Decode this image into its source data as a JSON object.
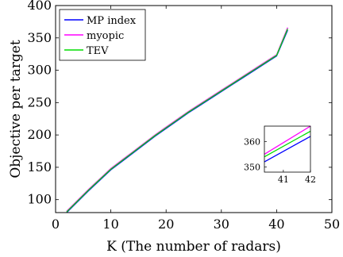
{
  "chart_data": [
    {
      "type": "line",
      "title": "",
      "xlabel": "K (The number of radars)",
      "ylabel": "Objective per target",
      "xlim": [
        0,
        50
      ],
      "ylim": [
        80,
        400
      ],
      "xticks": [
        0,
        10,
        20,
        30,
        40,
        50
      ],
      "yticks": [
        100,
        150,
        200,
        250,
        300,
        350,
        400
      ],
      "grid": false,
      "legend_position": "top-left",
      "series": [
        {
          "name": "MP index",
          "color": "#0000ff",
          "x": [
            2,
            4,
            6,
            8,
            10,
            12,
            14,
            16,
            18,
            20,
            22,
            24,
            26,
            28,
            30,
            32,
            34,
            36,
            38,
            40,
            42
          ],
          "y": [
            80,
            97,
            114,
            130,
            146,
            159,
            172,
            185,
            198,
            210,
            222,
            234,
            245,
            256,
            267,
            278,
            289,
            300,
            311,
            322,
            362
          ]
        },
        {
          "name": "myopic",
          "color": "#ff00ff",
          "x": [
            2,
            4,
            6,
            8,
            10,
            12,
            14,
            16,
            18,
            20,
            22,
            24,
            26,
            28,
            30,
            32,
            34,
            36,
            38,
            40,
            42
          ],
          "y": [
            82,
            99,
            116,
            132,
            148,
            161,
            174,
            187,
            200,
            212,
            224,
            236,
            247,
            258,
            269,
            280,
            291,
            302,
            313,
            324,
            366
          ]
        },
        {
          "name": "TEV",
          "color": "#00dd00",
          "x": [
            2,
            4,
            6,
            8,
            10,
            12,
            14,
            16,
            18,
            20,
            22,
            24,
            26,
            28,
            30,
            32,
            34,
            36,
            38,
            40,
            42
          ],
          "y": [
            81,
            98,
            115,
            131,
            147,
            160,
            173,
            186,
            199,
            211,
            223,
            235,
            246,
            257,
            268,
            279,
            290,
            301,
            312,
            323,
            364
          ]
        }
      ]
    },
    {
      "type": "line",
      "title": "",
      "xlim": [
        40.3,
        42
      ],
      "ylim": [
        348,
        366
      ],
      "xticks": [
        41,
        42
      ],
      "yticks": [
        350,
        360
      ],
      "series": [
        {
          "name": "MP index",
          "color": "#0000ff",
          "x": [
            40.3,
            42
          ],
          "y": [
            352,
            362
          ]
        },
        {
          "name": "myopic",
          "color": "#ff00ff",
          "x": [
            40.3,
            42
          ],
          "y": [
            355,
            366
          ]
        },
        {
          "name": "TEV",
          "color": "#00dd00",
          "x": [
            40.3,
            42
          ],
          "y": [
            354,
            364
          ]
        }
      ]
    }
  ]
}
